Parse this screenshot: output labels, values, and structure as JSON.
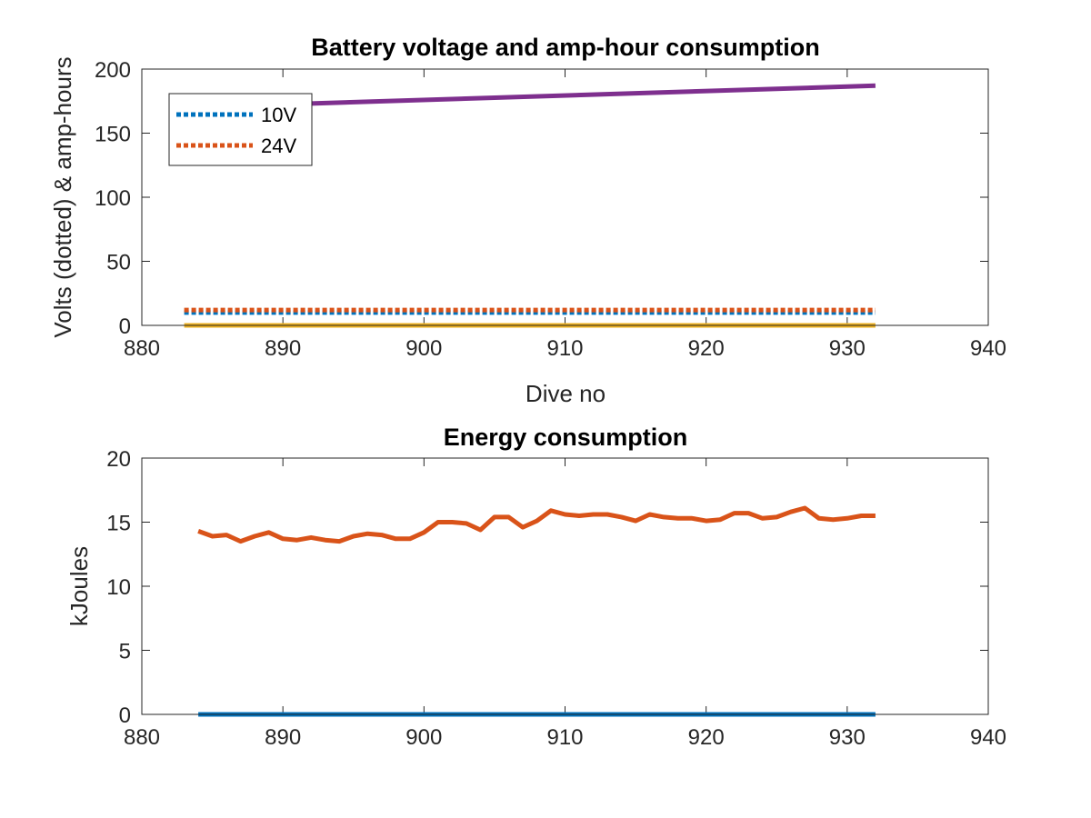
{
  "chart_data": [
    {
      "type": "line",
      "title": "Battery voltage and amp-hour consumption",
      "xlabel": "Dive no",
      "ylabel": "Volts (dotted) & amp-hours",
      "xlim": [
        880,
        940
      ],
      "ylim": [
        0,
        200
      ],
      "xticks": [
        880,
        890,
        900,
        910,
        920,
        930,
        940
      ],
      "yticks": [
        0,
        50,
        100,
        150,
        200
      ],
      "grid": false,
      "legend_position": "top-left",
      "series": [
        {
          "name": "10V",
          "style": "dotted",
          "color": "#0072BD",
          "x": [
            883,
            890,
            900,
            910,
            920,
            932
          ],
          "y": [
            10,
            10,
            10,
            10,
            10,
            10
          ]
        },
        {
          "name": "24V",
          "style": "dotted",
          "color": "#D95319",
          "x": [
            883,
            890,
            900,
            910,
            920,
            932
          ],
          "y": [
            12,
            12,
            12,
            12,
            12,
            12
          ]
        },
        {
          "style": "solid",
          "color": "#7E2F8E",
          "x": [
            883,
            932
          ],
          "y": [
            170,
            187
          ]
        },
        {
          "style": "solid",
          "color": "#EDB120",
          "x": [
            883,
            932
          ],
          "y": [
            0,
            0
          ]
        }
      ]
    },
    {
      "type": "line",
      "title": "Energy consumption",
      "xlabel": "",
      "ylabel": "kJoules",
      "xlim": [
        880,
        940
      ],
      "ylim": [
        0,
        20
      ],
      "xticks": [
        880,
        890,
        900,
        910,
        920,
        930,
        940
      ],
      "yticks": [
        0,
        5,
        10,
        15,
        20
      ],
      "grid": false,
      "series": [
        {
          "style": "solid",
          "color": "#D95319",
          "x": [
            884,
            885,
            886,
            887,
            888,
            889,
            890,
            891,
            892,
            893,
            894,
            895,
            896,
            897,
            898,
            899,
            900,
            901,
            902,
            903,
            904,
            905,
            906,
            907,
            908,
            909,
            910,
            911,
            912,
            913,
            914,
            915,
            916,
            917,
            918,
            919,
            920,
            921,
            922,
            923,
            924,
            925,
            926,
            927,
            928,
            929,
            930,
            931,
            932
          ],
          "y": [
            14.3,
            13.9,
            14.0,
            13.5,
            13.9,
            14.2,
            13.7,
            13.6,
            13.8,
            13.6,
            13.5,
            13.9,
            14.1,
            14.0,
            13.7,
            13.7,
            14.2,
            15.0,
            15.0,
            14.9,
            14.4,
            15.4,
            15.4,
            14.6,
            15.1,
            15.9,
            15.6,
            15.5,
            15.6,
            15.6,
            15.4,
            15.1,
            15.6,
            15.4,
            15.3,
            15.3,
            15.1,
            15.2,
            15.7,
            15.7,
            15.3,
            15.4,
            15.8,
            16.1,
            15.3,
            15.2,
            15.3,
            15.5,
            15.5
          ]
        },
        {
          "style": "solid",
          "color": "#0072BD",
          "x": [
            884,
            932
          ],
          "y": [
            0,
            0
          ]
        }
      ]
    }
  ]
}
